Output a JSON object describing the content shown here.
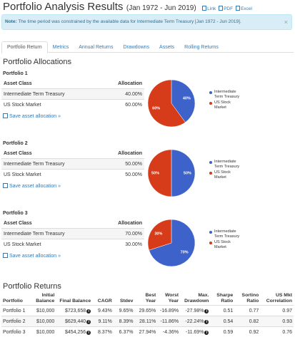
{
  "header": {
    "title": "Portfolio Analysis Results",
    "period": "(Jan 1972 - Jun 2019)",
    "links": [
      "Link",
      "PDF",
      "Excel"
    ]
  },
  "note": {
    "label": "Note:",
    "text": "The time period was constrained by the available data for Intermediate Term Treasury [Jan 1972 - Jun 2019]."
  },
  "tabs": [
    "Portfolio Return",
    "Metrics",
    "Annual Returns",
    "Drawdowns",
    "Assets",
    "Rolling Returns"
  ],
  "allocations": {
    "title": "Portfolio Allocations",
    "portfolios": [
      {
        "name": "Portfolio 1",
        "columns": [
          "Asset Class",
          "Allocation"
        ],
        "rows": [
          [
            "Intermediate Term Treasury",
            "40.00%"
          ],
          [
            "US Stock Market",
            "60.00%"
          ]
        ],
        "save_link": "Save asset allocation »",
        "pie": {
          "type": "pie",
          "labels": [
            "Intermediate Term Treasury",
            "US Stock Market"
          ],
          "values": [
            40,
            60
          ],
          "value_labels": [
            "40%",
            "60%"
          ],
          "colors": [
            "#3d62c9",
            "#d63b1a"
          ]
        }
      },
      {
        "name": "Portfolio 2",
        "columns": [
          "Asset Class",
          "Allocation"
        ],
        "rows": [
          [
            "Intermediate Term Treasury",
            "50.00%"
          ],
          [
            "US Stock Market",
            "50.00%"
          ]
        ],
        "save_link": "Save asset allocation »",
        "pie": {
          "type": "pie",
          "labels": [
            "Intermediate Term Treasury",
            "US Stock Market"
          ],
          "values": [
            50,
            50
          ],
          "value_labels": [
            "50%",
            "50%"
          ],
          "colors": [
            "#3d62c9",
            "#d63b1a"
          ]
        }
      },
      {
        "name": "Portfolio 3",
        "columns": [
          "Asset Class",
          "Allocation"
        ],
        "rows": [
          [
            "Intermediate Term Treasury",
            "70.00%"
          ],
          [
            "US Stock Market",
            "30.00%"
          ]
        ],
        "save_link": "Save asset allocation »",
        "pie": {
          "type": "pie",
          "labels": [
            "Intermediate Term Treasury",
            "US Stock Market"
          ],
          "values": [
            70,
            30
          ],
          "value_labels": [
            "70%",
            "30%"
          ],
          "colors": [
            "#3d62c9",
            "#d63b1a"
          ]
        }
      }
    ]
  },
  "returns": {
    "title": "Portfolio Returns",
    "columns": [
      "Portfolio",
      "Initial Balance",
      "Final Balance",
      "CAGR",
      "Stdev",
      "Best Year",
      "Worst Year",
      "Max. Drawdown",
      "Sharpe Ratio",
      "Sortino Ratio",
      "US Mkt Correlation"
    ],
    "rows": [
      [
        "Portfolio 1",
        "$10,000",
        "$723,658",
        "9.43%",
        "9.65%",
        "29.65%",
        "-16.89%",
        "-27.98%",
        "0.51",
        "0.77",
        "0.97"
      ],
      [
        "Portfolio 2",
        "$10,000",
        "$629,440",
        "9.11%",
        "8.39%",
        "28.11%",
        "-11.86%",
        "-22.24%",
        "0.54",
        "0.82",
        "0.93"
      ],
      [
        "Portfolio 3",
        "$10,000",
        "$454,256",
        "8.37%",
        "6.37%",
        "27.94%",
        "-4.36%",
        "-11.69%",
        "0.59",
        "0.92",
        "0.76"
      ]
    ]
  }
}
